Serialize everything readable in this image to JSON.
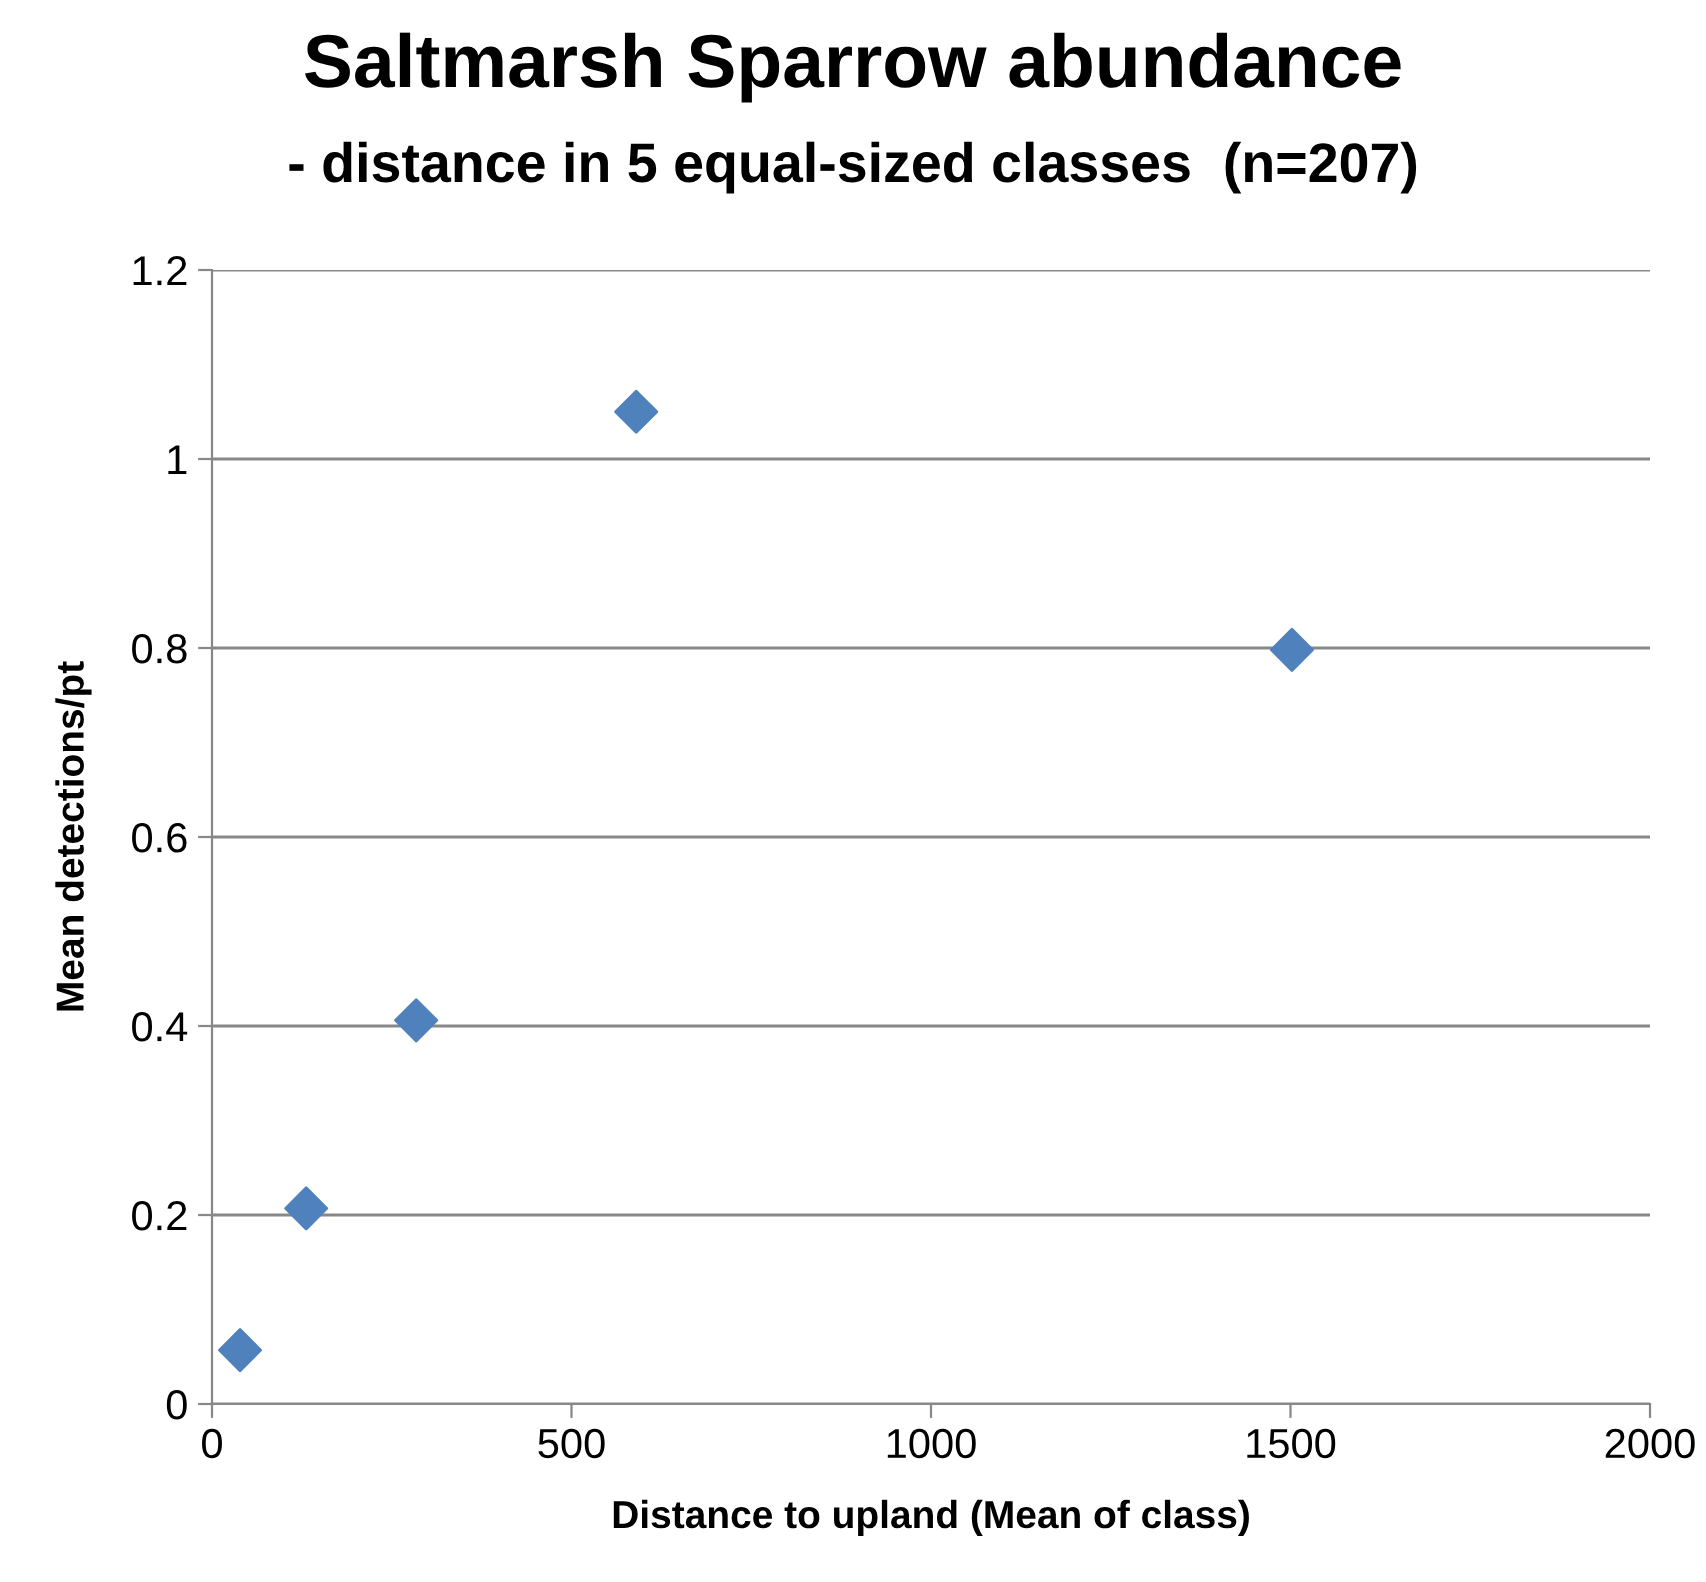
{
  "chart_data": {
    "type": "scatter",
    "title": "Saltmarsh Sparrow abundance",
    "subtitle": "- distance in 5 equal-sized classes  (n=207)",
    "xlabel": "Distance to upland (Mean of class)",
    "ylabel": "Mean detections/pt",
    "x": [
      39,
      131,
      284,
      590,
      1502
    ],
    "series": [
      {
        "color": "#4f81bd",
        "values": [
          0.057,
          0.207,
          0.406,
          1.05,
          0.798
        ]
      }
    ],
    "xlim": [
      0,
      2000
    ],
    "xticks": [
      0,
      500,
      1000,
      1500,
      2000
    ],
    "ylim": [
      0,
      1.2
    ],
    "yticks": [
      0,
      0.2,
      0.4,
      0.6,
      0.8,
      1,
      1.2
    ],
    "grid": "y",
    "marker": "diamond"
  }
}
